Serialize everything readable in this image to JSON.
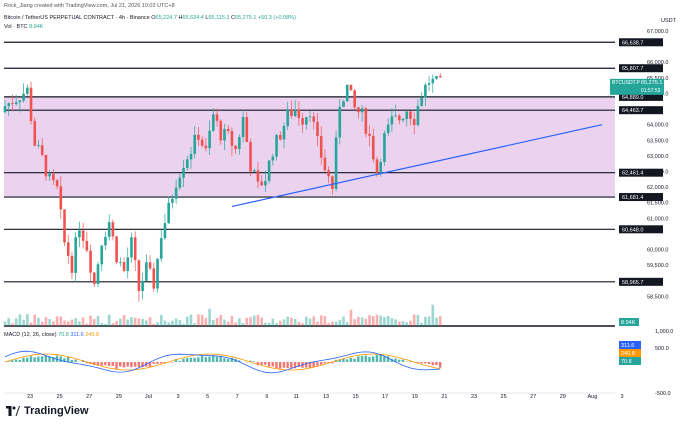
{
  "header": {
    "credit": "Rock_Jiang created with TradingView.com, Jul 21, 2026 10:02 UTC+8",
    "symbol": "Bitcoin / TetherUS PERPETUAL CONTRACT · 4h · Binance",
    "ohlc": {
      "o_label": "O",
      "o": "65,224.7",
      "h_label": "H",
      "h": "65,634.4",
      "l_label": "L",
      "l": "65,115.3",
      "c_label": "C",
      "c": "65,275.1",
      "chg": "+50.3 (+0.08%)"
    },
    "vol_label": "Vol · BTC",
    "vol_value": "8.94K",
    "macd_label": "MACD (12, 26, close)",
    "macd_values": [
      "70.8",
      "311.6",
      "240.8"
    ]
  },
  "axis": {
    "currency": "USDT",
    "price_ticks": [
      "67,000.0",
      "66,000.0",
      "65,500.0",
      "65,000.0",
      "64,000.0",
      "63,500.0",
      "63,000.0",
      "62,500.0",
      "62,000.0",
      "61,500.0",
      "61,000.0",
      "60,000.0",
      "59,500.0",
      "58,500.0"
    ],
    "macd_ticks": [
      "1,000.0",
      "500.0",
      "-500.0"
    ],
    "date_ticks": [
      "23",
      "25",
      "27",
      "29",
      "Jul",
      "3",
      "5",
      "7",
      "9",
      "11",
      "13",
      "15",
      "17",
      "19",
      "21",
      "23",
      "25",
      "27",
      "29",
      "Aug",
      "3"
    ]
  },
  "levels": [
    "66,638.7",
    "65,807.7",
    "64,889.0",
    "64,463.7",
    "62,461.4",
    "61,681.4",
    "60,648.0",
    "58,965.7"
  ],
  "badges": {
    "ticker": "BTCUSDT.P",
    "price": "65,275.1",
    "countdown": "01:57:53",
    "volume": "8.94K",
    "macd_vals": [
      "311.6",
      "240.8",
      "70.8"
    ]
  },
  "colors": {
    "up": "#26a69a",
    "down": "#ef5350",
    "zone": "#e6c8ec",
    "trend": "#2962ff",
    "macd": "#2962ff",
    "signal": "#ff9800"
  },
  "footer": {
    "brand": "TradingView"
  },
  "chart_data": {
    "type": "candlestick",
    "timeframe": "4h",
    "y_range": [
      57500,
      67500
    ],
    "price_levels": [
      66638.7,
      65807.7,
      64889.0,
      64463.7,
      62461.4,
      61681.4,
      60648.0,
      58965.7
    ],
    "zone": [
      61681.4,
      64889.0
    ],
    "trendline": {
      "from": [
        "Jul 7",
        61380
      ],
      "to": [
        "Jul 24",
        64000
      ]
    },
    "last": {
      "open": 65224.7,
      "high": 65634.4,
      "low": 65115.3,
      "close": 65275.1,
      "change": 50.3,
      "change_pct": 0.08,
      "volume": "8.94K"
    },
    "macd": {
      "params": [
        12,
        26
      ],
      "histogram": 70.8,
      "macd": 311.6,
      "signal": 240.8
    }
  }
}
